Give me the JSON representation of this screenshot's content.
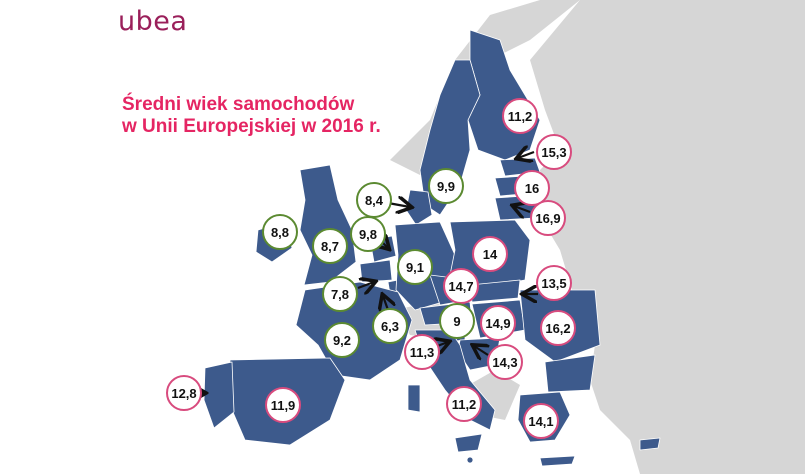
{
  "logo_text": "ubea",
  "title": {
    "line1": "Średni wiek samochodów",
    "line2": "w Unii Europejskiej w 2016 r."
  },
  "colors": {
    "eu": "#3d5a8c",
    "non_eu": "#d6d6d6",
    "border": "#ffffff",
    "old": "#d84b7e",
    "young": "#5b8a31",
    "title": "#e52563",
    "arrow": "#111111"
  },
  "legend_note": "",
  "countries": [
    {
      "name": "Finlandia",
      "value": "11,2",
      "category": "old"
    },
    {
      "name": "Estonia",
      "value": "15,3",
      "category": "old"
    },
    {
      "name": "Łotwa",
      "value": "16",
      "category": "old"
    },
    {
      "name": "Litwa",
      "value": "16,9",
      "category": "old"
    },
    {
      "name": "Szwecja",
      "value": "9,9",
      "category": "young"
    },
    {
      "name": "Dania",
      "value": "8,4",
      "category": "young"
    },
    {
      "name": "Irlandia",
      "value": "8,8",
      "category": "young"
    },
    {
      "name": "Wielka Brytania",
      "value": "8,7",
      "category": "young"
    },
    {
      "name": "Holandia",
      "value": "9,8",
      "category": "young"
    },
    {
      "name": "Niemcy",
      "value": "9,1",
      "category": "young"
    },
    {
      "name": "Polska",
      "value": "14",
      "category": "old"
    },
    {
      "name": "Belgia",
      "value": "7,8",
      "category": "young"
    },
    {
      "name": "Luksemburg",
      "value": "6,3",
      "category": "young"
    },
    {
      "name": "Czechy",
      "value": "14,7",
      "category": "old"
    },
    {
      "name": "Słowacja",
      "value": "13,5",
      "category": "old"
    },
    {
      "name": "Francja",
      "value": "9,2",
      "category": "young"
    },
    {
      "name": "Austria",
      "value": "9",
      "category": "young"
    },
    {
      "name": "Węgry",
      "value": "14,9",
      "category": "old"
    },
    {
      "name": "Rumunia",
      "value": "16,2",
      "category": "old"
    },
    {
      "name": "Słowenia",
      "value": "11,3",
      "category": "old"
    },
    {
      "name": "Chorwacja",
      "value": "14,3",
      "category": "old"
    },
    {
      "name": "Portugalia",
      "value": "12,8",
      "category": "old"
    },
    {
      "name": "Hiszpania",
      "value": "11,9",
      "category": "old"
    },
    {
      "name": "Włochy",
      "value": "11,2",
      "category": "old"
    },
    {
      "name": "Grecja",
      "value": "14,1",
      "category": "old"
    }
  ]
}
